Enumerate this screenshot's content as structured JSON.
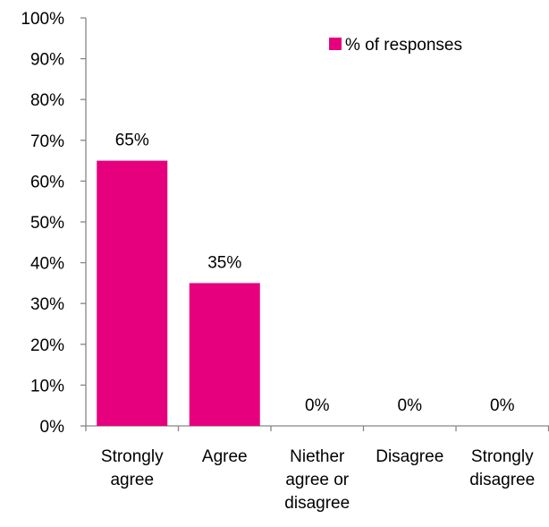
{
  "chart_data": {
    "type": "bar",
    "categories": [
      [
        "Strongly",
        "agree"
      ],
      [
        "Agree"
      ],
      [
        "Niether",
        "agree or",
        "disagree"
      ],
      [
        "Disagree"
      ],
      [
        "Strongly",
        "disagree"
      ]
    ],
    "series": [
      {
        "name": "% of responses",
        "values": [
          65,
          35,
          0,
          0,
          0
        ],
        "data_labels": [
          "65%",
          "35%",
          "0%",
          "0%",
          "0%"
        ],
        "color": "#E6007E"
      }
    ],
    "ylim": [
      0,
      100
    ],
    "y_ticks": [
      "0%",
      "10%",
      "20%",
      "30%",
      "40%",
      "50%",
      "60%",
      "70%",
      "80%",
      "90%",
      "100%"
    ],
    "grid": false,
    "legend_position": "top-right",
    "axis_color": "#868686"
  }
}
